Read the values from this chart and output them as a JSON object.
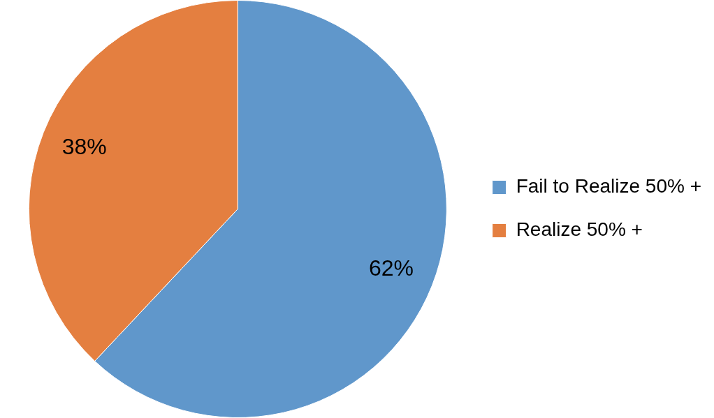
{
  "chart_data": {
    "type": "pie",
    "categories": [
      "Fail to Realize 50% +",
      "Realize 50% +"
    ],
    "values": [
      62,
      38
    ],
    "colors": [
      "#6097cb",
      "#e47f40"
    ],
    "value_labels": [
      "62%",
      "38%"
    ],
    "legend": "right"
  }
}
